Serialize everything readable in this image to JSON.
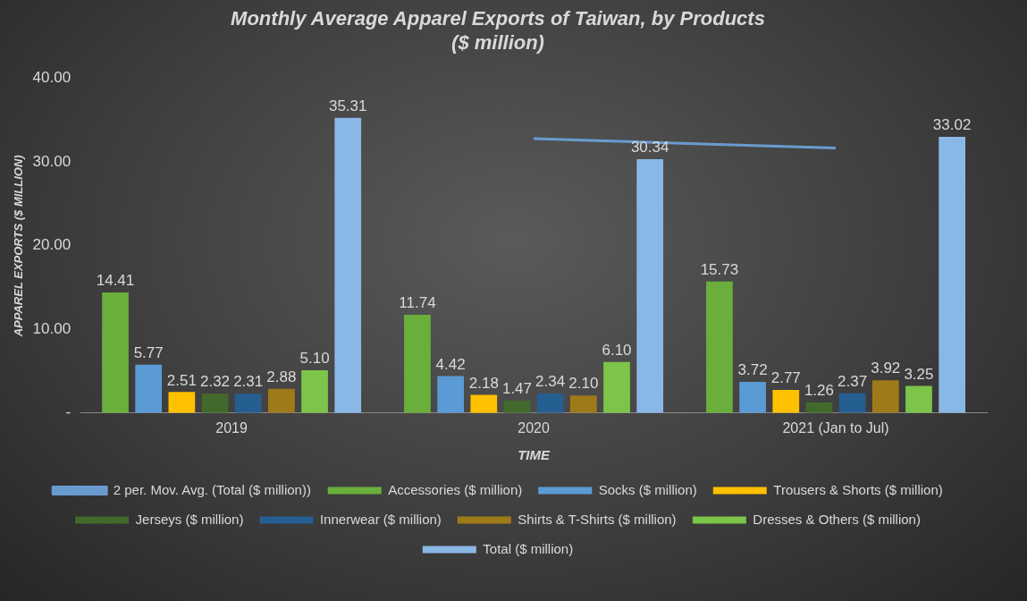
{
  "chart_data": {
    "type": "bar",
    "title": "Monthly Average Apparel Exports of Taiwan, by Products\n($ million)",
    "xlabel": "TIME",
    "ylabel": "APPAREL EXPORTS ($ MILLION)",
    "categories": [
      "2019",
      "2020",
      "2021 (Jan to Jul)"
    ],
    "series": [
      {
        "name": "Accessories ($ million)",
        "color": "#6aaf3c",
        "values": [
          14.41,
          11.74,
          15.73
        ],
        "value_labels": [
          "14.41",
          "11.74",
          "15.73"
        ]
      },
      {
        "name": "Socks ($ million)",
        "color": "#5b9bd5",
        "values": [
          5.77,
          4.42,
          3.72
        ],
        "value_labels": [
          "5.77",
          "4.42",
          "3.72"
        ]
      },
      {
        "name": "Trousers & Shorts ($ million)",
        "color": "#ffc000",
        "values": [
          2.51,
          2.18,
          2.77
        ],
        "value_labels": [
          "2.51",
          "2.18",
          "2.77"
        ]
      },
      {
        "name": "Jerseys ($ million)",
        "color": "#43682b",
        "values": [
          2.32,
          1.47,
          1.26
        ],
        "value_labels": [
          "2.32",
          "1.47",
          "1.26"
        ]
      },
      {
        "name": "Innerwear ($ million)",
        "color": "#255e91",
        "values": [
          2.31,
          2.34,
          2.37
        ],
        "value_labels": [
          "2.31",
          "2.34",
          "2.37"
        ]
      },
      {
        "name": "Shirts & T-Shirts ($ million)",
        "color": "#9e7a19",
        "values": [
          2.88,
          2.1,
          3.92
        ],
        "value_labels": [
          "2.88",
          "2.10",
          "3.92"
        ]
      },
      {
        "name": "Dresses & Others ($ million)",
        "color": "#7cc44a",
        "values": [
          5.1,
          6.1,
          3.25
        ],
        "value_labels": [
          "5.10",
          "6.10",
          "3.25"
        ]
      },
      {
        "name": "Total ($ million)",
        "color": "#8ab8e6",
        "values": [
          35.31,
          30.34,
          33.02
        ],
        "value_labels": [
          "35.31",
          "30.34",
          "33.02"
        ]
      },
      {
        "name": "2 per. Mov. Avg. (Total ($ million))",
        "type": "line",
        "color": "#6a9bd0",
        "values": [
          null,
          32.8,
          31.7
        ]
      }
    ],
    "ylim": [
      0,
      40
    ],
    "yticks": [
      {
        "value": 0,
        "label": "-"
      },
      {
        "value": 10,
        "label": "10.00"
      },
      {
        "value": 20,
        "label": "20.00"
      },
      {
        "value": 30,
        "label": "30.00"
      },
      {
        "value": 40,
        "label": "40.00"
      }
    ],
    "grid": false,
    "legend": "bottom"
  }
}
